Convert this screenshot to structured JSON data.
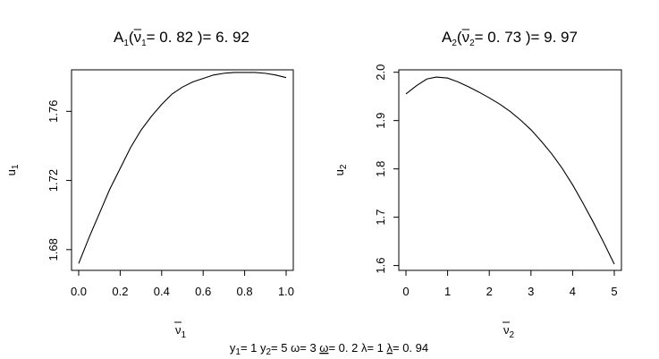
{
  "chart_data": [
    {
      "type": "line",
      "title": {
        "pre": "A",
        "pre_sub": "1",
        "open": "(",
        "var": "ν",
        "var_sub": "1",
        "post": "= 0. 82 )= 6. 92"
      },
      "xlabel": {
        "var": "ν",
        "sub": "1"
      },
      "ylabel": {
        "var": "u",
        "sub": "1"
      },
      "xlim": [
        0.0,
        1.0
      ],
      "ylim": [
        1.668,
        1.784
      ],
      "xticks": [
        "0.0",
        "0.2",
        "0.4",
        "0.6",
        "0.8",
        "1.0"
      ],
      "yticks": [
        "1.68",
        "1.72",
        "1.76"
      ],
      "grid": false,
      "series": [
        {
          "x": [
            0.0,
            0.05,
            0.1,
            0.15,
            0.2,
            0.25,
            0.3,
            0.35,
            0.4,
            0.45,
            0.5,
            0.55,
            0.6,
            0.65,
            0.7,
            0.75,
            0.8,
            0.85,
            0.9,
            0.95,
            1.0
          ],
          "y": [
            1.672,
            1.687,
            1.701,
            1.715,
            1.727,
            1.739,
            1.749,
            1.757,
            1.764,
            1.77,
            1.774,
            1.777,
            1.779,
            1.781,
            1.782,
            1.7825,
            1.7825,
            1.7825,
            1.782,
            1.781,
            1.7795
          ]
        }
      ]
    },
    {
      "type": "line",
      "title": {
        "pre": "A",
        "pre_sub": "2",
        "open": "(",
        "var": "ν",
        "var_sub": "2",
        "post": "= 0. 73 )= 9. 97"
      },
      "xlabel": {
        "var": "ν",
        "sub": "2"
      },
      "ylabel": {
        "var": "u",
        "sub": "2"
      },
      "xlim": [
        0,
        5
      ],
      "ylim": [
        1.59,
        2.005
      ],
      "xticks": [
        "0",
        "1",
        "2",
        "3",
        "4",
        "5"
      ],
      "yticks": [
        "1.6",
        "1.7",
        "1.8",
        "1.9",
        "2.0"
      ],
      "grid": false,
      "series": [
        {
          "x": [
            0.0,
            0.25,
            0.5,
            0.73,
            1.0,
            1.25,
            1.5,
            1.75,
            2.0,
            2.25,
            2.5,
            2.75,
            3.0,
            3.25,
            3.5,
            3.75,
            4.0,
            4.25,
            4.5,
            4.75,
            5.0
          ],
          "y": [
            1.955,
            1.972,
            1.986,
            1.99,
            1.988,
            1.98,
            1.97,
            1.959,
            1.947,
            1.934,
            1.919,
            1.901,
            1.881,
            1.857,
            1.831,
            1.801,
            1.767,
            1.729,
            1.689,
            1.647,
            1.603
          ]
        }
      ]
    }
  ],
  "caption": [
    {
      "t": "y",
      "s": "1"
    },
    {
      "t": "= 1 y"
    },
    {
      "t": "",
      "s": "2"
    },
    {
      "t": "= 5 ω= 3 "
    },
    {
      "t": "ω",
      "u": true
    },
    {
      "t": "= 0. 2 λ= 1 "
    },
    {
      "t": "λ",
      "u": true
    },
    {
      "t": "= 0. 94"
    }
  ]
}
